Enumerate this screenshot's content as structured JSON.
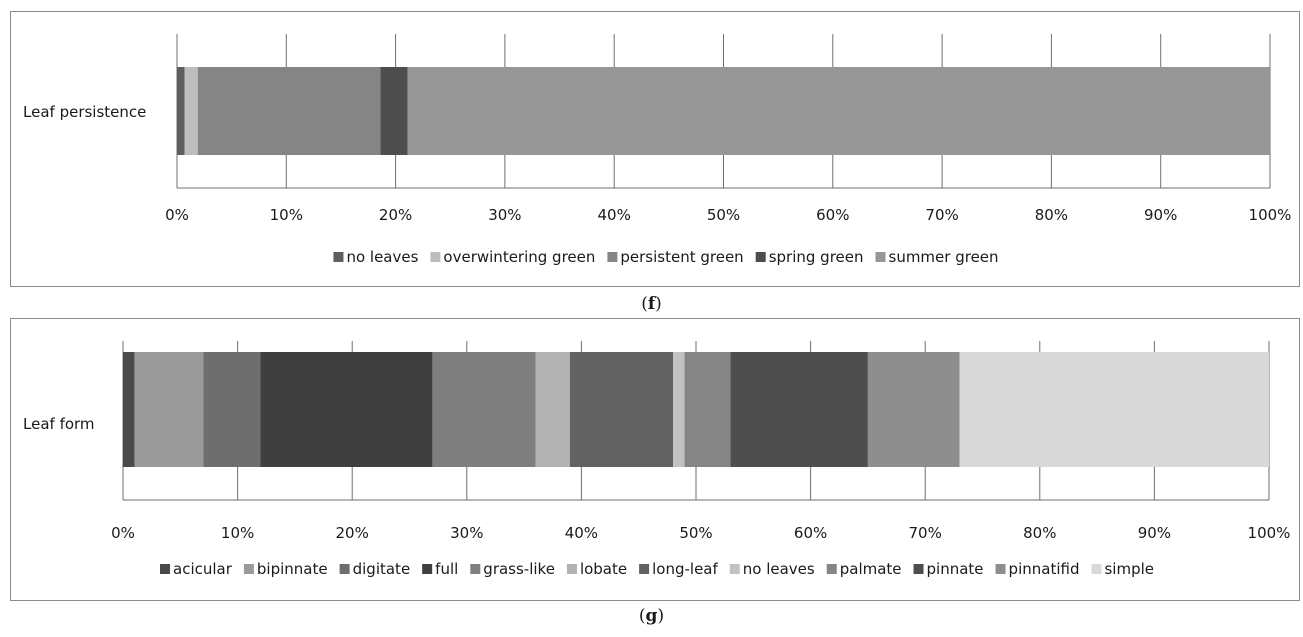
{
  "chart_data": [
    {
      "type": "bar",
      "orientation": "horizontal",
      "stacked": "percent",
      "panel_label": "f",
      "categories": [
        "Leaf persistence"
      ],
      "xlim": [
        0,
        100
      ],
      "xticks": [
        "0%",
        "10%",
        "20%",
        "30%",
        "40%",
        "50%",
        "60%",
        "70%",
        "80%",
        "90%",
        "100%"
      ],
      "grid": true,
      "legend_position": "bottom",
      "series": [
        {
          "name": "no leaves",
          "values": [
            0.7
          ],
          "color": "#5f5f5f"
        },
        {
          "name": "overwintering green",
          "values": [
            1.2
          ],
          "color": "#bdbdbd"
        },
        {
          "name": "persistent green",
          "values": [
            16.7
          ],
          "color": "#858585"
        },
        {
          "name": "spring green",
          "values": [
            2.5
          ],
          "color": "#4d4d4d"
        },
        {
          "name": "summer green",
          "values": [
            78.9
          ],
          "color": "#979797"
        }
      ]
    },
    {
      "type": "bar",
      "orientation": "horizontal",
      "stacked": "percent",
      "panel_label": "g",
      "categories": [
        "Leaf form"
      ],
      "xlim": [
        0,
        100
      ],
      "xticks": [
        "0%",
        "10%",
        "20%",
        "30%",
        "40%",
        "50%",
        "60%",
        "70%",
        "80%",
        "90%",
        "100%"
      ],
      "grid": true,
      "legend_position": "bottom",
      "series": [
        {
          "name": "acicular",
          "values": [
            1
          ],
          "color": "#4a4a4a"
        },
        {
          "name": "bipinnate",
          "values": [
            6
          ],
          "color": "#9a9a9a"
        },
        {
          "name": "digitate",
          "values": [
            5
          ],
          "color": "#6e6e6e"
        },
        {
          "name": "full",
          "values": [
            15
          ],
          "color": "#3f3f3f"
        },
        {
          "name": "grass-like",
          "values": [
            9
          ],
          "color": "#7f7f7f"
        },
        {
          "name": "lobate",
          "values": [
            3
          ],
          "color": "#b2b2b2"
        },
        {
          "name": "long-leaf",
          "values": [
            9
          ],
          "color": "#626262"
        },
        {
          "name": "no leaves",
          "values": [
            1
          ],
          "color": "#c2c2c2"
        },
        {
          "name": "palmate",
          "values": [
            4
          ],
          "color": "#858585"
        },
        {
          "name": "pinnate",
          "values": [
            12
          ],
          "color": "#4e4e4e"
        },
        {
          "name": "pinnatifid",
          "values": [
            8
          ],
          "color": "#8e8e8e"
        },
        {
          "name": "simple",
          "values": [
            27
          ],
          "color": "#d9d9d9"
        }
      ]
    }
  ]
}
